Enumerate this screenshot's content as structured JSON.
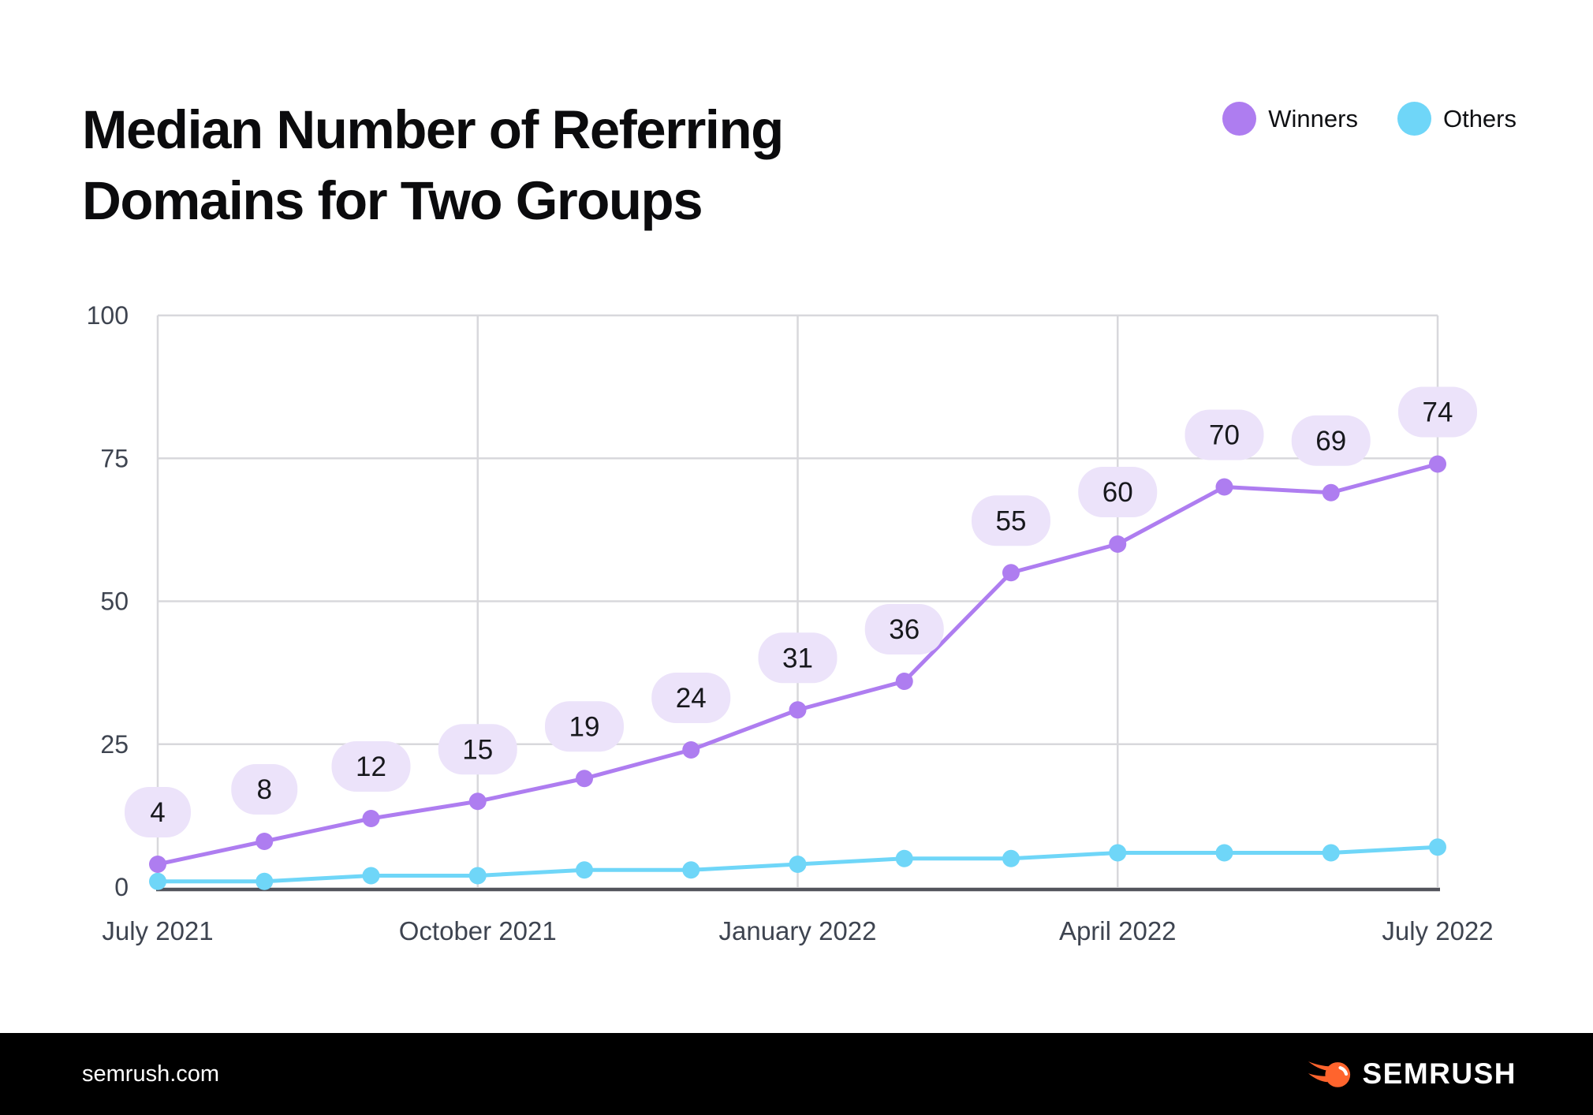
{
  "header": {
    "title": "Median Number of Referring Domains for Two Groups",
    "title_lines": [
      "Median Number of Referring",
      "Domains for Two Groups"
    ]
  },
  "legend": [
    {
      "label": "Winners",
      "color": "#AE7DF0"
    },
    {
      "label": "Others",
      "color": "#6FD6F8"
    }
  ],
  "chart_data": {
    "type": "line",
    "title": "Median Number of Referring Domains for Two Groups",
    "n_points": 13,
    "x_tick_labels": [
      "July 2021",
      "October 2021",
      "January 2022",
      "April 2022",
      "July 2022"
    ],
    "x_tick_indices": [
      0,
      3,
      6,
      9,
      12
    ],
    "y_ticks": [
      0,
      25,
      50,
      75,
      100
    ],
    "ylim": [
      0,
      100
    ],
    "grid": true,
    "legend_position": "top-right",
    "colors": {
      "gridline": "#D8D8DC",
      "axis_line": "#53545C",
      "tick_label": "#3E4450",
      "data_label_text": "#17181C"
    },
    "series": [
      {
        "name": "Winners",
        "color": "#AE7DF0",
        "values": [
          4,
          8,
          12,
          15,
          19,
          24,
          31,
          36,
          55,
          60,
          70,
          69,
          74
        ],
        "show_data_labels": true,
        "label_pill_color": "#ECE3FA"
      },
      {
        "name": "Others",
        "color": "#6FD6F8",
        "values": [
          1,
          1,
          2,
          2,
          3,
          3,
          4,
          5,
          5,
          6,
          6,
          6,
          7
        ],
        "show_data_labels": false
      }
    ]
  },
  "footer": {
    "website": "semrush.com",
    "brand": "SEMRUSH",
    "brand_color": "#FF642D"
  }
}
